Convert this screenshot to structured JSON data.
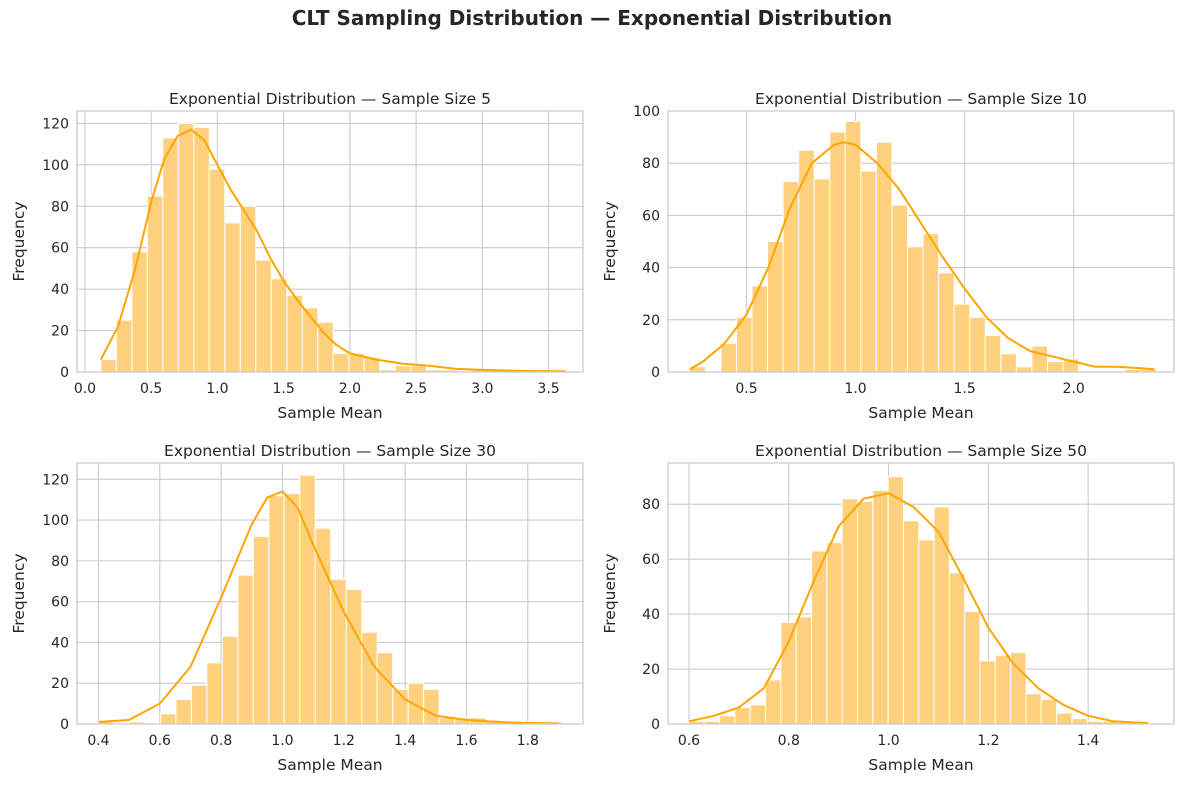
{
  "suptitle": "CLT Sampling Distribution — Exponential Distribution",
  "colors": {
    "bar": "#ffd17f",
    "kde": "#ffa500",
    "grid": "#cccccc"
  },
  "chart_data": [
    {
      "type": "bar",
      "title": "Exponential Distribution — Sample Size 5",
      "xlabel": "Sample Mean",
      "ylabel": "Frequency",
      "xlim": [
        -0.06,
        3.76
      ],
      "ylim": [
        0,
        126
      ],
      "xticks": [
        0.0,
        0.5,
        1.0,
        1.5,
        2.0,
        2.5,
        3.0,
        3.5
      ],
      "xtick_labels": [
        "0.0",
        "0.5",
        "1.0",
        "1.5",
        "2.0",
        "2.5",
        "3.0",
        "3.5"
      ],
      "yticks": [
        0,
        20,
        40,
        60,
        80,
        100,
        120
      ],
      "ytick_labels": [
        "0",
        "20",
        "40",
        "60",
        "80",
        "100",
        "120"
      ],
      "bin_start": 0.12,
      "bin_width": 0.117,
      "counts": [
        6,
        25,
        58,
        85,
        113,
        120,
        118,
        98,
        72,
        80,
        54,
        45,
        37,
        31,
        24,
        9,
        9,
        7,
        1,
        3,
        3,
        1,
        1,
        0,
        1,
        1,
        1,
        1,
        0,
        1
      ],
      "kde": [
        [
          0.12,
          6
        ],
        [
          0.25,
          22
        ],
        [
          0.38,
          50
        ],
        [
          0.5,
          82
        ],
        [
          0.6,
          103
        ],
        [
          0.7,
          114
        ],
        [
          0.8,
          117
        ],
        [
          0.9,
          112
        ],
        [
          1.0,
          100
        ],
        [
          1.1,
          88
        ],
        [
          1.2,
          78
        ],
        [
          1.3,
          68
        ],
        [
          1.4,
          55
        ],
        [
          1.5,
          44
        ],
        [
          1.6,
          35
        ],
        [
          1.7,
          27
        ],
        [
          1.8,
          19
        ],
        [
          1.9,
          13
        ],
        [
          2.0,
          9
        ],
        [
          2.2,
          6
        ],
        [
          2.4,
          4
        ],
        [
          2.6,
          3
        ],
        [
          2.8,
          1.5
        ],
        [
          3.0,
          1
        ],
        [
          3.3,
          0.5
        ],
        [
          3.63,
          0.3
        ]
      ]
    },
    {
      "type": "bar",
      "title": "Exponential Distribution — Sample Size 10",
      "xlabel": "Sample Mean",
      "ylabel": "Frequency",
      "xlim": [
        0.14,
        2.46
      ],
      "ylim": [
        0,
        100
      ],
      "xticks": [
        0.5,
        1.0,
        1.5,
        2.0
      ],
      "xtick_labels": [
        "0.5",
        "1.0",
        "1.5",
        "2.0"
      ],
      "yticks": [
        0,
        20,
        40,
        60,
        80,
        100
      ],
      "ytick_labels": [
        "0",
        "20",
        "40",
        "60",
        "80",
        "100"
      ],
      "bin_start": 0.24,
      "bin_width": 0.0713,
      "counts": [
        2,
        0,
        11,
        21,
        33,
        50,
        73,
        85,
        74,
        92,
        96,
        77,
        88,
        64,
        48,
        53,
        38,
        26,
        21,
        14,
        7,
        2,
        10,
        4,
        5,
        0,
        0,
        0,
        1,
        1
      ],
      "kde": [
        [
          0.24,
          1
        ],
        [
          0.3,
          4
        ],
        [
          0.4,
          11
        ],
        [
          0.5,
          22
        ],
        [
          0.6,
          40
        ],
        [
          0.7,
          63
        ],
        [
          0.8,
          80
        ],
        [
          0.9,
          87
        ],
        [
          0.95,
          88
        ],
        [
          1.0,
          87
        ],
        [
          1.1,
          80
        ],
        [
          1.2,
          70
        ],
        [
          1.3,
          57
        ],
        [
          1.4,
          44
        ],
        [
          1.5,
          32
        ],
        [
          1.6,
          21
        ],
        [
          1.7,
          13
        ],
        [
          1.8,
          8
        ],
        [
          1.9,
          6
        ],
        [
          2.0,
          4
        ],
        [
          2.1,
          2
        ],
        [
          2.2,
          2
        ],
        [
          2.3,
          1.5
        ],
        [
          2.37,
          1
        ]
      ]
    },
    {
      "type": "bar",
      "title": "Exponential Distribution — Sample Size 30",
      "xlabel": "Sample Mean",
      "ylabel": "Frequency",
      "xlim": [
        0.33,
        1.98
      ],
      "ylim": [
        0,
        128
      ],
      "xticks": [
        0.4,
        0.6,
        0.8,
        1.0,
        1.2,
        1.4,
        1.6,
        1.8
      ],
      "xtick_labels": [
        "0.4",
        "0.6",
        "0.8",
        "1.0",
        "1.2",
        "1.4",
        "1.6",
        "1.8"
      ],
      "yticks": [
        0,
        20,
        40,
        60,
        80,
        100,
        120
      ],
      "ytick_labels": [
        "0",
        "20",
        "40",
        "60",
        "80",
        "100",
        "120"
      ],
      "bin_start": 0.4,
      "bin_width": 0.0505,
      "counts": [
        1,
        0,
        1,
        0,
        5,
        12,
        19,
        30,
        43,
        73,
        92,
        112,
        113,
        122,
        96,
        71,
        66,
        45,
        35,
        17,
        20,
        17,
        3,
        3,
        3,
        2,
        1,
        0,
        0,
        1
      ],
      "kde": [
        [
          0.4,
          1
        ],
        [
          0.5,
          2
        ],
        [
          0.6,
          10
        ],
        [
          0.7,
          28
        ],
        [
          0.8,
          62
        ],
        [
          0.9,
          98
        ],
        [
          0.95,
          111
        ],
        [
          1.0,
          114
        ],
        [
          1.05,
          106
        ],
        [
          1.1,
          88
        ],
        [
          1.2,
          55
        ],
        [
          1.3,
          28
        ],
        [
          1.4,
          12
        ],
        [
          1.5,
          4
        ],
        [
          1.6,
          2
        ],
        [
          1.7,
          1
        ],
        [
          1.8,
          0.5
        ],
        [
          1.9,
          0.3
        ]
      ]
    },
    {
      "type": "bar",
      "title": "Exponential Distribution — Sample Size 50",
      "xlabel": "Sample Mean",
      "ylabel": "Frequency",
      "xlim": [
        0.558,
        1.572
      ],
      "ylim": [
        0,
        95
      ],
      "xticks": [
        0.6,
        0.8,
        1.0,
        1.2,
        1.4
      ],
      "xtick_labels": [
        "0.6",
        "0.8",
        "1.0",
        "1.2",
        "1.4"
      ],
      "yticks": [
        0,
        20,
        40,
        60,
        80
      ],
      "ytick_labels": [
        "0",
        "20",
        "40",
        "60",
        "80"
      ],
      "bin_start": 0.6,
      "bin_width": 0.0307,
      "counts": [
        1,
        1,
        3,
        6,
        7,
        16,
        37,
        39,
        63,
        66,
        82,
        81,
        85,
        90,
        74,
        67,
        79,
        55,
        41,
        23,
        25,
        26,
        11,
        9,
        4,
        2,
        1,
        1,
        1,
        1
      ],
      "kde": [
        [
          0.6,
          1
        ],
        [
          0.65,
          3
        ],
        [
          0.7,
          6
        ],
        [
          0.75,
          13
        ],
        [
          0.8,
          30
        ],
        [
          0.85,
          52
        ],
        [
          0.9,
          72
        ],
        [
          0.95,
          82
        ],
        [
          1.0,
          84
        ],
        [
          1.05,
          79
        ],
        [
          1.1,
          70
        ],
        [
          1.15,
          53
        ],
        [
          1.2,
          35
        ],
        [
          1.25,
          22
        ],
        [
          1.3,
          13
        ],
        [
          1.35,
          7
        ],
        [
          1.4,
          3
        ],
        [
          1.45,
          1
        ],
        [
          1.5,
          0.5
        ],
        [
          1.52,
          0.3
        ]
      ]
    }
  ]
}
